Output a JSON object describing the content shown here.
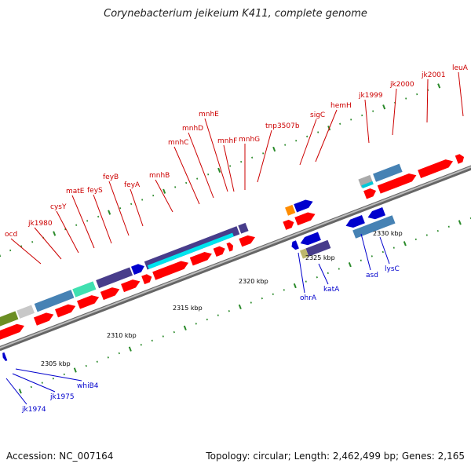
{
  "title": "Corynebacterium jeikeium K411, complete genome",
  "footer": {
    "accession": "Accession: NC_007164",
    "summary": "Topology: circular; Length: 2,462,499 bp; Genes: 2,165"
  },
  "colors": {
    "forward_label": "#cc0000",
    "reverse_label": "#0000cc",
    "cds_red": "#ff0000",
    "backbone": "#888888",
    "tick": "#2a8a2a"
  },
  "scale_labels": [
    "2305 kbp",
    "2310 kbp",
    "2315 kbp",
    "2320 kbp",
    "2325 kbp",
    "2330 kbp"
  ],
  "forward_genes": [
    "ocd",
    "jk1980",
    "cysY",
    "matE",
    "feyS",
    "feyB",
    "feyA",
    "mnhB",
    "mnhC",
    "mnhD",
    "mnhE",
    "mnhF",
    "mnhG",
    "tnp3507b",
    "sigC",
    "hemH",
    "jk1999",
    "jk2000",
    "jk2001",
    "leuA"
  ],
  "reverse_genes": [
    "whiB4",
    "jk1975",
    "jk1974",
    "ohrA",
    "katA",
    "asd",
    "lysC"
  ]
}
